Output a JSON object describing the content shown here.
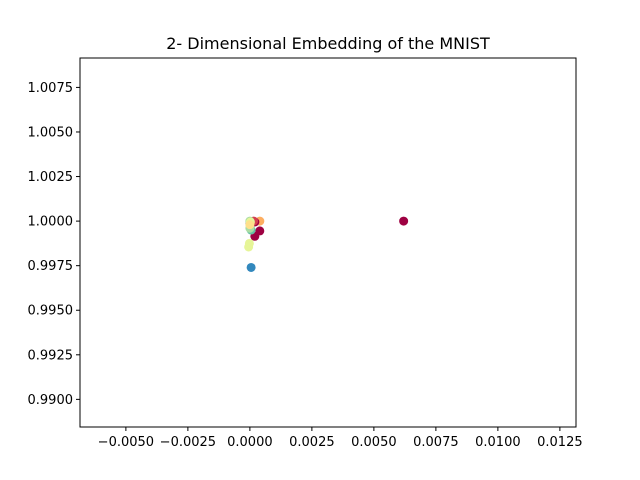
{
  "chart_data": {
    "type": "scatter",
    "title": "2- Dimensional Embedding of the MNIST",
    "xlabel": "",
    "ylabel": "",
    "xlim": [
      -0.00685,
      0.01315
    ],
    "ylim": [
      0.98845,
      1.00915
    ],
    "grid": false,
    "legend": "none",
    "x_ticks": [
      {
        "value": -0.005,
        "label": "−0.0050"
      },
      {
        "value": -0.0025,
        "label": "−0.0025"
      },
      {
        "value": 0.0,
        "label": "0.0000"
      },
      {
        "value": 0.0025,
        "label": "0.0025"
      },
      {
        "value": 0.005,
        "label": "0.0050"
      },
      {
        "value": 0.0075,
        "label": "0.0075"
      },
      {
        "value": 0.01,
        "label": "0.0100"
      },
      {
        "value": 0.0125,
        "label": "0.0125"
      }
    ],
    "y_ticks": [
      {
        "value": 0.99,
        "label": "0.9900"
      },
      {
        "value": 0.9925,
        "label": "0.9925"
      },
      {
        "value": 0.995,
        "label": "0.9950"
      },
      {
        "value": 0.9975,
        "label": "0.9975"
      },
      {
        "value": 1.0,
        "label": "1.0000"
      },
      {
        "value": 1.0025,
        "label": "1.0025"
      },
      {
        "value": 1.005,
        "label": "1.0050"
      },
      {
        "value": 1.0075,
        "label": "1.0075"
      }
    ],
    "points": [
      {
        "x": 0.0062,
        "y": 1.0,
        "color": "#9e0142"
      },
      {
        "x": 5e-05,
        "y": 0.9974,
        "color": "#3288bd"
      },
      {
        "x": -5e-05,
        "y": 0.99855,
        "color": "#e6f598"
      },
      {
        "x": -2e-05,
        "y": 0.99875,
        "color": "#e6f598"
      },
      {
        "x": 0.0002,
        "y": 0.99915,
        "color": "#9e0142"
      },
      {
        "x": 0.0004,
        "y": 0.99945,
        "color": "#9e0142"
      },
      {
        "x": 5e-05,
        "y": 0.9995,
        "color": "#66c2a5"
      },
      {
        "x": 0.0,
        "y": 0.9996,
        "color": "#abdda4"
      },
      {
        "x": 0.0004,
        "y": 1.0,
        "color": "#fdae61"
      },
      {
        "x": 0.0002,
        "y": 0.99995,
        "color": "#9e0142"
      },
      {
        "x": 0.00015,
        "y": 1.0,
        "color": "#d53e4f"
      },
      {
        "x": 0.0,
        "y": 0.99985,
        "color": "#5e4fa2"
      },
      {
        "x": 0.0,
        "y": 1.0,
        "color": "#abdda4"
      },
      {
        "x": 2e-05,
        "y": 0.99995,
        "color": "#e6f598"
      },
      {
        "x": 0.0,
        "y": 0.9998,
        "color": "#fee08b"
      }
    ]
  }
}
